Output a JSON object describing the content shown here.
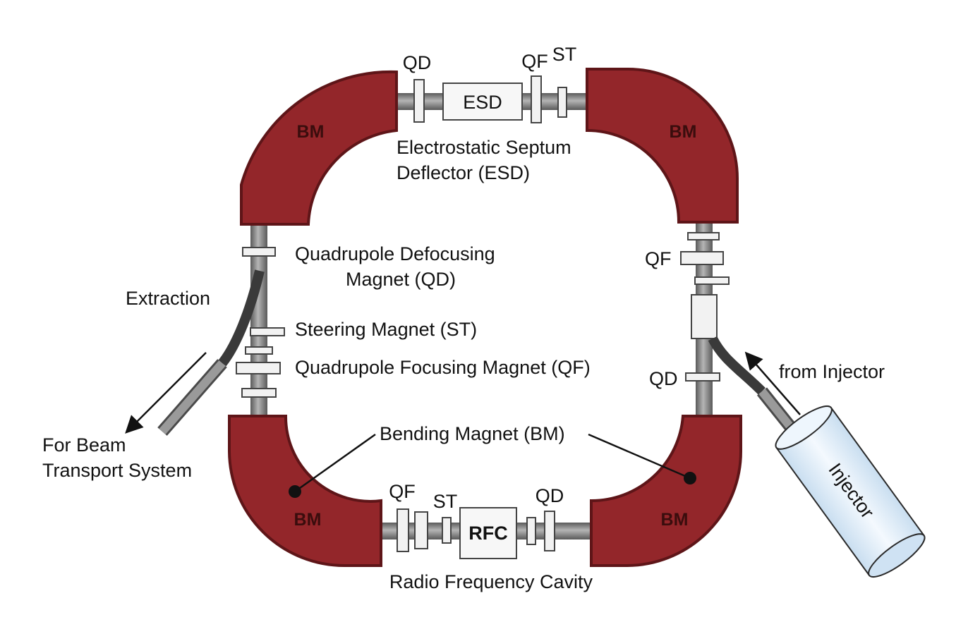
{
  "colors": {
    "magnet": "#93262a",
    "magnet_dark": "#5e1518",
    "pipe": "#8c8c8c",
    "pipe_dark": "#4a4a4a",
    "element": "#f2f2f2",
    "injector": "#e3f0fb",
    "extraction_pipe": "#3a3a3a"
  },
  "magnets": {
    "top_left": "BM",
    "top_right": "BM",
    "bottom_left": "BM",
    "bottom_right": "BM"
  },
  "top_section": {
    "qd": "QD",
    "esd_box": "ESD",
    "qf": "QF",
    "st": "ST",
    "caption_line1": "Electrostatic Septum",
    "caption_line2": "Deflector (ESD)"
  },
  "bottom_section": {
    "qf": "QF",
    "st": "ST",
    "rfc_box": "RFC",
    "qd": "QD",
    "caption": "Radio Frequency Cavity",
    "bending_magnet_label": "Bending Magnet (BM)"
  },
  "left_section": {
    "qd_label_line1": "Quadrupole Defocusing",
    "qd_label_line2": "Magnet (QD)",
    "st_label": "Steering Magnet (ST)",
    "qf_label": "Quadrupole Focusing Magnet (QF)",
    "extraction": "Extraction",
    "beam_transport_line1": "For Beam",
    "beam_transport_line2": "Transport System"
  },
  "right_section": {
    "qf": "QF",
    "qd": "QD",
    "from_injector": "from Injector",
    "injector": "Injector"
  }
}
